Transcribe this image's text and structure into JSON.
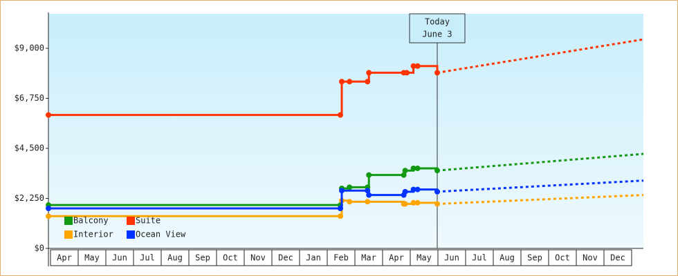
{
  "chart_data": {
    "type": "line",
    "step": true,
    "categories": [
      "Apr",
      "May",
      "Jun",
      "Jul",
      "Aug",
      "Sep",
      "Oct",
      "Nov",
      "Dec",
      "Jan",
      "Feb",
      "Mar",
      "Apr",
      "May",
      "Jun",
      "Jul",
      "Aug",
      "Sep",
      "Oct",
      "Nov",
      "Dec"
    ],
    "xlim": [
      0,
      21.5
    ],
    "ylim": [
      0,
      10550
    ],
    "yticks": [
      {
        "value": 0,
        "label": "$0"
      },
      {
        "value": 2250,
        "label": "$2,250"
      },
      {
        "value": 4500,
        "label": "$4,500"
      },
      {
        "value": 6750,
        "label": "$6,750"
      },
      {
        "value": 9000,
        "label": "$9,000"
      }
    ],
    "today": {
      "x": 14.05,
      "label": [
        "Today",
        "June 3"
      ]
    },
    "series": [
      {
        "name": "Balcony",
        "color": "#119911",
        "x": [
          0,
          10.55,
          10.6,
          10.88,
          11.53,
          11.58,
          12.84,
          12.89,
          13.19,
          13.34,
          14.05
        ],
        "values": [
          1950,
          1950,
          2700,
          2750,
          2750,
          3300,
          3300,
          3500,
          3600,
          3600,
          3500
        ],
        "projected_x": [
          14.05,
          21.5
        ],
        "projected_values": [
          3500,
          4250
        ]
      },
      {
        "name": "Suite",
        "color": "#ff3300",
        "x": [
          0,
          10.55,
          10.6,
          10.88,
          11.53,
          11.58,
          12.84,
          12.95,
          13.19,
          13.34,
          14.05
        ],
        "values": [
          6000,
          6000,
          7500,
          7500,
          7500,
          7900,
          7900,
          7900,
          8200,
          8200,
          7900
        ],
        "projected_x": [
          14.05,
          21.5
        ],
        "projected_values": [
          7900,
          9400
        ]
      },
      {
        "name": "Interior",
        "color": "#ffa500",
        "x": [
          0,
          10.55,
          10.6,
          10.88,
          11.53,
          12.84,
          12.89,
          13.19,
          13.34,
          14.05
        ],
        "values": [
          1450,
          1450,
          2150,
          2100,
          2100,
          2000,
          2000,
          2050,
          2050,
          2000
        ],
        "projected_x": [
          14.05,
          21.5
        ],
        "projected_values": [
          2000,
          2400
        ]
      },
      {
        "name": "Ocean View",
        "color": "#0033ff",
        "x": [
          0,
          10.55,
          10.6,
          11.53,
          11.58,
          12.84,
          12.89,
          13.19,
          13.34,
          14.05
        ],
        "values": [
          1800,
          1800,
          2600,
          2600,
          2400,
          2400,
          2550,
          2650,
          2650,
          2550
        ],
        "projected_x": [
          14.05,
          21.5
        ],
        "projected_values": [
          2550,
          3050
        ]
      }
    ]
  }
}
